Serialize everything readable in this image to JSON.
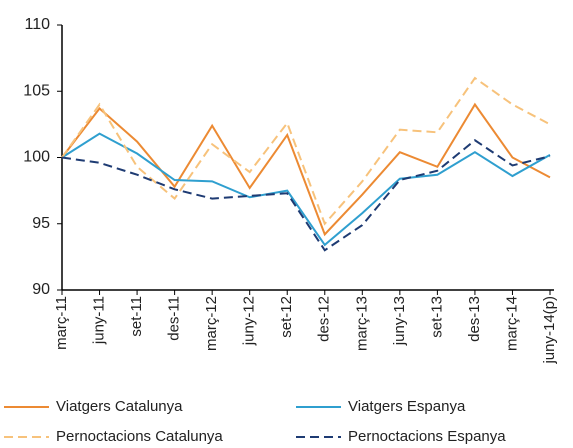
{
  "chart_data": {
    "type": "line",
    "categories": [
      "març-11",
      "juny-11",
      "set-11",
      "des-11",
      "març-12",
      "juny-12",
      "set-12",
      "des-12",
      "març-13",
      "juny-13",
      "set-13",
      "des-13",
      "març-14",
      "juny-14(p)"
    ],
    "series": [
      {
        "name": "Viatgers Catalunya",
        "color": "#ec8a33",
        "dashed": false,
        "values": [
          100,
          103.7,
          101.2,
          97.8,
          102.4,
          97.7,
          101.7,
          94.2,
          97.2,
          100.4,
          99.3,
          104.0,
          100.0,
          98.5
        ]
      },
      {
        "name": "Viatgers Espanya",
        "color": "#2f9fcf",
        "dashed": false,
        "values": [
          100,
          101.8,
          100.3,
          98.3,
          98.2,
          97.0,
          97.5,
          93.4,
          95.8,
          98.4,
          98.7,
          100.4,
          98.6,
          100.2
        ]
      },
      {
        "name": "Pernoctacions Catalunya",
        "color": "#f7c27b",
        "dashed": true,
        "values": [
          100,
          104.0,
          99.3,
          96.9,
          101.0,
          98.9,
          102.6,
          95.0,
          98.2,
          102.1,
          101.9,
          106.0,
          104.0,
          102.5
        ]
      },
      {
        "name": "Pernoctacions Espanya",
        "color": "#1e3b73",
        "dashed": true,
        "values": [
          100,
          99.6,
          98.7,
          97.6,
          96.9,
          97.1,
          97.3,
          93.0,
          94.9,
          98.3,
          99.0,
          101.3,
          99.4,
          100.1
        ]
      }
    ],
    "ylim": [
      90,
      110
    ],
    "yticks": [
      90,
      95,
      100,
      105,
      110
    ],
    "grid": false
  }
}
